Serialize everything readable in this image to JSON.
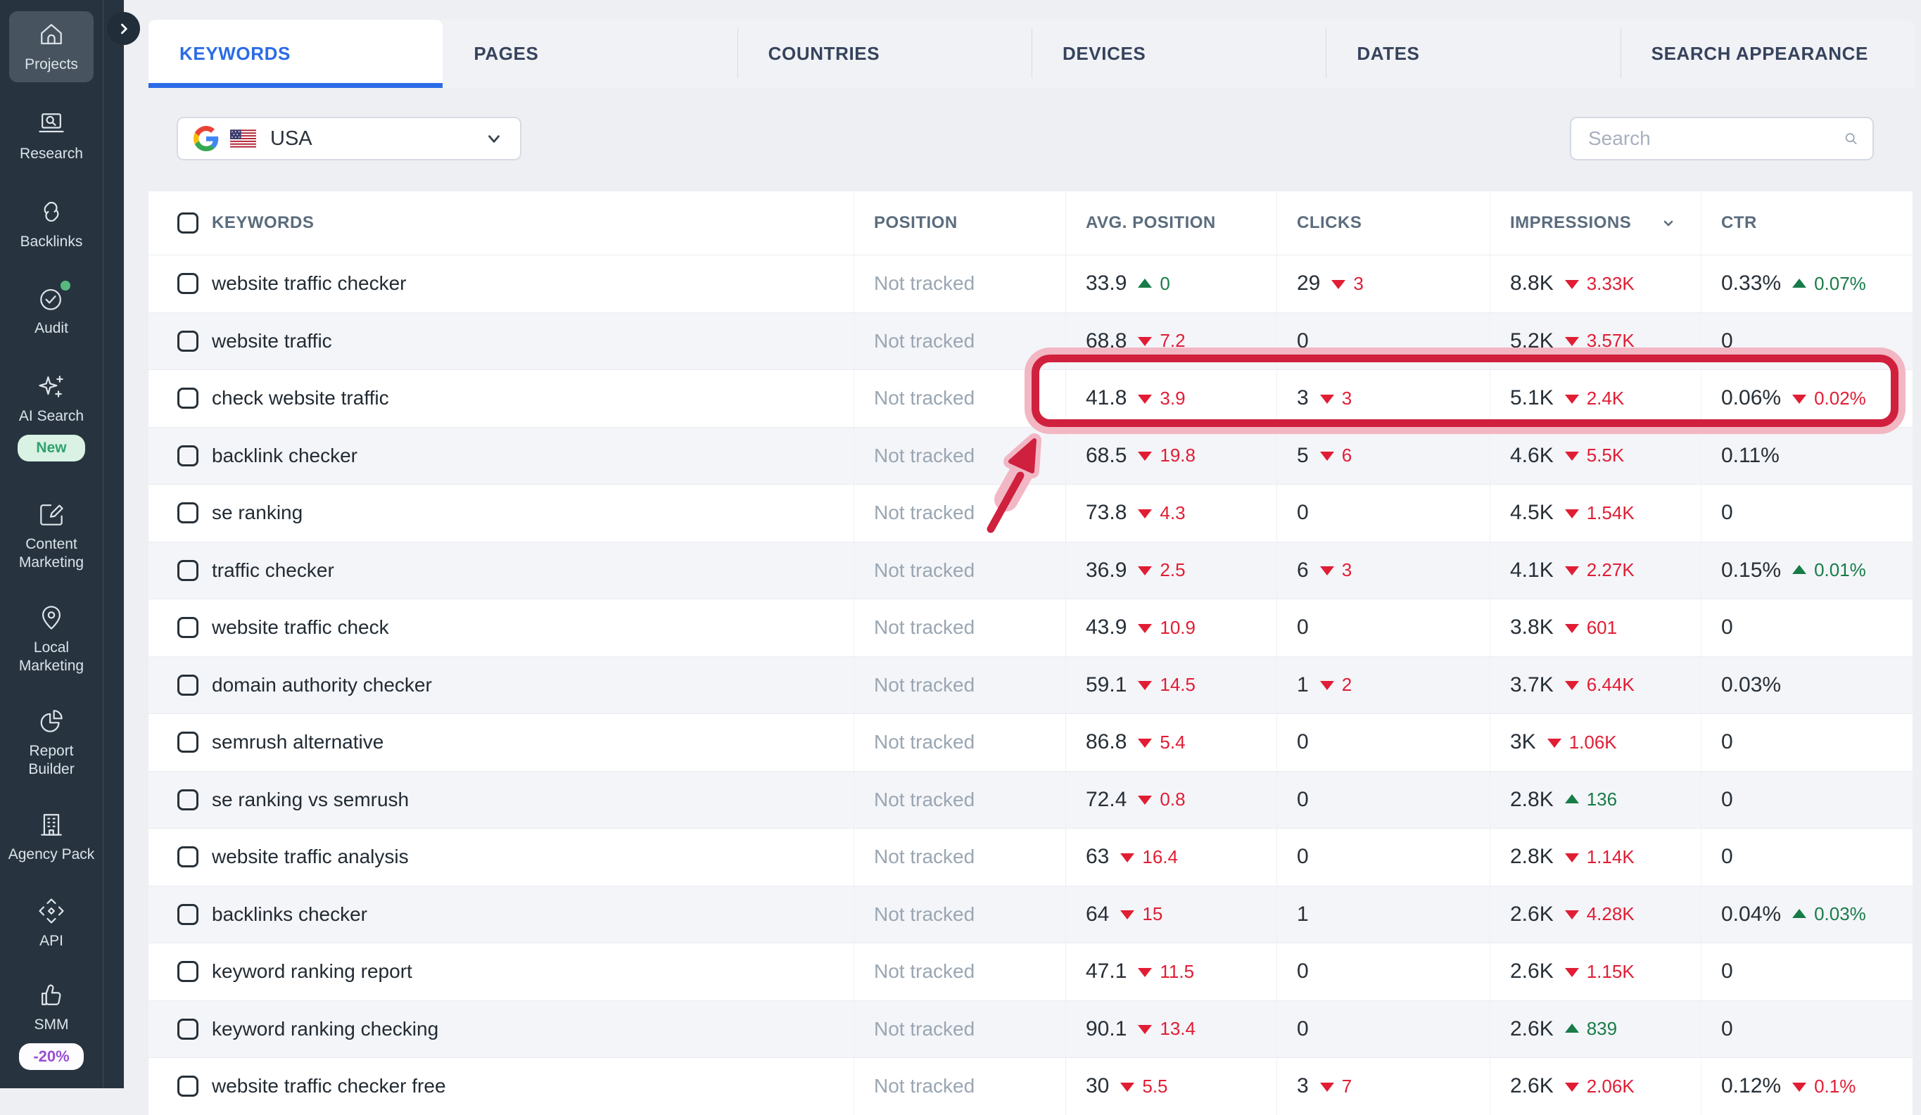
{
  "sidebar": {
    "collapse_button": "chevron-right",
    "items": [
      {
        "label": "Projects",
        "icon": "home-icon",
        "active": true
      },
      {
        "label": "Research",
        "icon": "laptop-search-icon"
      },
      {
        "label": "Backlinks",
        "icon": "link-icon"
      },
      {
        "label": "Audit",
        "icon": "check-circle-icon",
        "dot": true
      },
      {
        "label": "AI Search",
        "icon": "sparkles-icon",
        "badge": "New",
        "badge_style": "new"
      },
      {
        "label": "Content Marketing",
        "icon": "edit-square-icon"
      },
      {
        "label": "Local Marketing",
        "icon": "location-pin-icon"
      },
      {
        "label": "Report Builder",
        "icon": "pie-chart-icon"
      },
      {
        "label": "Agency Pack",
        "icon": "building-icon"
      },
      {
        "label": "API",
        "icon": "api-module-icon"
      },
      {
        "label": "SMM",
        "icon": "thumbs-up-icon",
        "badge": "-20%",
        "badge_style": "discount"
      }
    ]
  },
  "tabs": [
    {
      "label": "KEYWORDS",
      "active": true
    },
    {
      "label": "PAGES",
      "active": false
    },
    {
      "label": "COUNTRIES",
      "active": false
    },
    {
      "label": "DEVICES",
      "active": false
    },
    {
      "label": "DATES",
      "active": false
    },
    {
      "label": "SEARCH APPEARANCE",
      "active": false
    }
  ],
  "toolbar": {
    "engine_selector": {
      "search_engine": "Google",
      "flag": "USA-flag",
      "label": "USA"
    },
    "search": {
      "placeholder": "Search"
    }
  },
  "table": {
    "columns": [
      "KEYWORDS",
      "POSITION",
      "AVG. POSITION",
      "CLICKS",
      "IMPRESSIONS",
      "CTR"
    ],
    "sorted_column": "IMPRESSIONS",
    "rows": [
      {
        "keyword": "website traffic checker",
        "position": "Not tracked",
        "avg_position": {
          "value": "33.9",
          "delta": "0",
          "dir": "up"
        },
        "clicks": {
          "value": "29",
          "delta": "3",
          "dir": "down"
        },
        "impressions": {
          "value": "8.8K",
          "delta": "3.33K",
          "dir": "down"
        },
        "ctr": {
          "value": "0.33%",
          "delta": "0.07%",
          "dir": "up"
        },
        "highlighted": false
      },
      {
        "keyword": "website traffic",
        "position": "Not tracked",
        "avg_position": {
          "value": "68.8",
          "delta": "7.2",
          "dir": "down"
        },
        "clicks": {
          "value": "0",
          "delta": null,
          "dir": null
        },
        "impressions": {
          "value": "5.2K",
          "delta": "3.57K",
          "dir": "down"
        },
        "ctr": {
          "value": "0",
          "delta": null,
          "dir": null
        },
        "highlighted": false
      },
      {
        "keyword": "check website traffic",
        "position": "Not tracked",
        "avg_position": {
          "value": "41.8",
          "delta": "3.9",
          "dir": "down"
        },
        "clicks": {
          "value": "3",
          "delta": "3",
          "dir": "down"
        },
        "impressions": {
          "value": "5.1K",
          "delta": "2.4K",
          "dir": "down"
        },
        "ctr": {
          "value": "0.06%",
          "delta": "0.02%",
          "dir": "down"
        },
        "highlighted": true
      },
      {
        "keyword": "backlink checker",
        "position": "Not tracked",
        "avg_position": {
          "value": "68.5",
          "delta": "19.8",
          "dir": "down"
        },
        "clicks": {
          "value": "5",
          "delta": "6",
          "dir": "down"
        },
        "impressions": {
          "value": "4.6K",
          "delta": "5.5K",
          "dir": "down"
        },
        "ctr": {
          "value": "0.11%",
          "delta": null,
          "dir": null
        },
        "highlighted": false
      },
      {
        "keyword": "se ranking",
        "position": "Not tracked",
        "avg_position": {
          "value": "73.8",
          "delta": "4.3",
          "dir": "down"
        },
        "clicks": {
          "value": "0",
          "delta": null,
          "dir": null
        },
        "impressions": {
          "value": "4.5K",
          "delta": "1.54K",
          "dir": "down"
        },
        "ctr": {
          "value": "0",
          "delta": null,
          "dir": null
        },
        "highlighted": false
      },
      {
        "keyword": "traffic checker",
        "position": "Not tracked",
        "avg_position": {
          "value": "36.9",
          "delta": "2.5",
          "dir": "down"
        },
        "clicks": {
          "value": "6",
          "delta": "3",
          "dir": "down"
        },
        "impressions": {
          "value": "4.1K",
          "delta": "2.27K",
          "dir": "down"
        },
        "ctr": {
          "value": "0.15%",
          "delta": "0.01%",
          "dir": "up"
        },
        "highlighted": false
      },
      {
        "keyword": "website traffic check",
        "position": "Not tracked",
        "avg_position": {
          "value": "43.9",
          "delta": "10.9",
          "dir": "down"
        },
        "clicks": {
          "value": "0",
          "delta": null,
          "dir": null
        },
        "impressions": {
          "value": "3.8K",
          "delta": "601",
          "dir": "down"
        },
        "ctr": {
          "value": "0",
          "delta": null,
          "dir": null
        },
        "highlighted": false
      },
      {
        "keyword": "domain authority checker",
        "position": "Not tracked",
        "avg_position": {
          "value": "59.1",
          "delta": "14.5",
          "dir": "down"
        },
        "clicks": {
          "value": "1",
          "delta": "2",
          "dir": "down"
        },
        "impressions": {
          "value": "3.7K",
          "delta": "6.44K",
          "dir": "down"
        },
        "ctr": {
          "value": "0.03%",
          "delta": null,
          "dir": null
        },
        "highlighted": false
      },
      {
        "keyword": "semrush alternative",
        "position": "Not tracked",
        "avg_position": {
          "value": "86.8",
          "delta": "5.4",
          "dir": "down"
        },
        "clicks": {
          "value": "0",
          "delta": null,
          "dir": null
        },
        "impressions": {
          "value": "3K",
          "delta": "1.06K",
          "dir": "down"
        },
        "ctr": {
          "value": "0",
          "delta": null,
          "dir": null
        },
        "highlighted": false
      },
      {
        "keyword": "se ranking vs semrush",
        "position": "Not tracked",
        "avg_position": {
          "value": "72.4",
          "delta": "0.8",
          "dir": "down"
        },
        "clicks": {
          "value": "0",
          "delta": null,
          "dir": null
        },
        "impressions": {
          "value": "2.8K",
          "delta": "136",
          "dir": "up"
        },
        "ctr": {
          "value": "0",
          "delta": null,
          "dir": null
        },
        "highlighted": false
      },
      {
        "keyword": "website traffic analysis",
        "position": "Not tracked",
        "avg_position": {
          "value": "63",
          "delta": "16.4",
          "dir": "down"
        },
        "clicks": {
          "value": "0",
          "delta": null,
          "dir": null
        },
        "impressions": {
          "value": "2.8K",
          "delta": "1.14K",
          "dir": "down"
        },
        "ctr": {
          "value": "0",
          "delta": null,
          "dir": null
        },
        "highlighted": false
      },
      {
        "keyword": "backlinks checker",
        "position": "Not tracked",
        "avg_position": {
          "value": "64",
          "delta": "15",
          "dir": "down"
        },
        "clicks": {
          "value": "1",
          "delta": null,
          "dir": null
        },
        "impressions": {
          "value": "2.6K",
          "delta": "4.28K",
          "dir": "down"
        },
        "ctr": {
          "value": "0.04%",
          "delta": "0.03%",
          "dir": "up"
        },
        "highlighted": false
      },
      {
        "keyword": "keyword ranking report",
        "position": "Not tracked",
        "avg_position": {
          "value": "47.1",
          "delta": "11.5",
          "dir": "down"
        },
        "clicks": {
          "value": "0",
          "delta": null,
          "dir": null
        },
        "impressions": {
          "value": "2.6K",
          "delta": "1.15K",
          "dir": "down"
        },
        "ctr": {
          "value": "0",
          "delta": null,
          "dir": null
        },
        "highlighted": false
      },
      {
        "keyword": "keyword ranking checking",
        "position": "Not tracked",
        "avg_position": {
          "value": "90.1",
          "delta": "13.4",
          "dir": "down"
        },
        "clicks": {
          "value": "0",
          "delta": null,
          "dir": null
        },
        "impressions": {
          "value": "2.6K",
          "delta": "839",
          "dir": "up"
        },
        "ctr": {
          "value": "0",
          "delta": null,
          "dir": null
        },
        "highlighted": false
      },
      {
        "keyword": "website traffic checker free",
        "position": "Not tracked",
        "avg_position": {
          "value": "30",
          "delta": "5.5",
          "dir": "down"
        },
        "clicks": {
          "value": "3",
          "delta": "7",
          "dir": "down"
        },
        "impressions": {
          "value": "2.6K",
          "delta": "2.06K",
          "dir": "down"
        },
        "ctr": {
          "value": "0.12%",
          "delta": "0.1%",
          "dir": "down"
        },
        "highlighted": false
      }
    ]
  },
  "annotations": {
    "highlight": "red rounded box around metrics of row 'check website traffic'",
    "arrow": "red arrow pointing to highlighted row"
  },
  "colors": {
    "accent_blue": "#2b6be6",
    "positive_green": "#177c48",
    "negative_red": "#e11d34",
    "highlight_crimson": "#d1203d",
    "highlight_glow_pink": "#f1b3c0",
    "sidebar_bg": "#273440",
    "badge_new_green": "#2fa26d",
    "badge_discount_purple": "#9a4fd3"
  }
}
